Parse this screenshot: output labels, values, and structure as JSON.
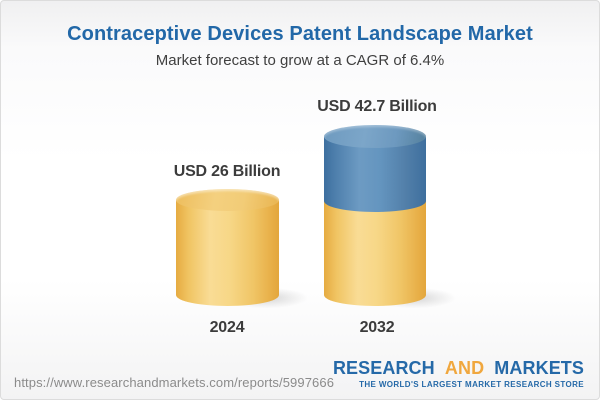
{
  "header": {
    "title": "Contraceptive Devices Patent Landscape Market",
    "subtitle": "Market forecast to grow at a CAGR of 6.4%"
  },
  "chart_data": {
    "type": "bar",
    "variant": "3d-cylinder",
    "title": "Contraceptive Devices Patent Landscape Market",
    "subtitle": "Market forecast to grow at a CAGR of 6.4%",
    "categories": [
      "2024",
      "2032"
    ],
    "values": [
      26,
      42.7
    ],
    "unit": "USD Billion",
    "value_labels": [
      "USD 26 Billion",
      "USD 42.7 Billion"
    ],
    "cagr_percent": 6.4,
    "legend": "none",
    "grid": false,
    "axes": "none",
    "segments_2032": {
      "base_value": 26,
      "growth_value": 16.7,
      "base_color": "#F0C566",
      "growth_color": "#5D8CB8"
    },
    "colors": {
      "bar_gold": "#F0C566",
      "bar_blue": "#5D8CB8",
      "label_text": "#3C3C3C",
      "title_blue": "#2268A8"
    }
  },
  "footer": {
    "url": "https://www.researchandmarkets.com/reports/5997666",
    "logo": {
      "word1": "RESEARCH",
      "word2": "AND",
      "word3": "MARKETS",
      "tagline": "THE WORLD'S LARGEST MARKET RESEARCH STORE",
      "brand_blue": "#2569A8",
      "brand_gold": "#F0A73E"
    }
  }
}
